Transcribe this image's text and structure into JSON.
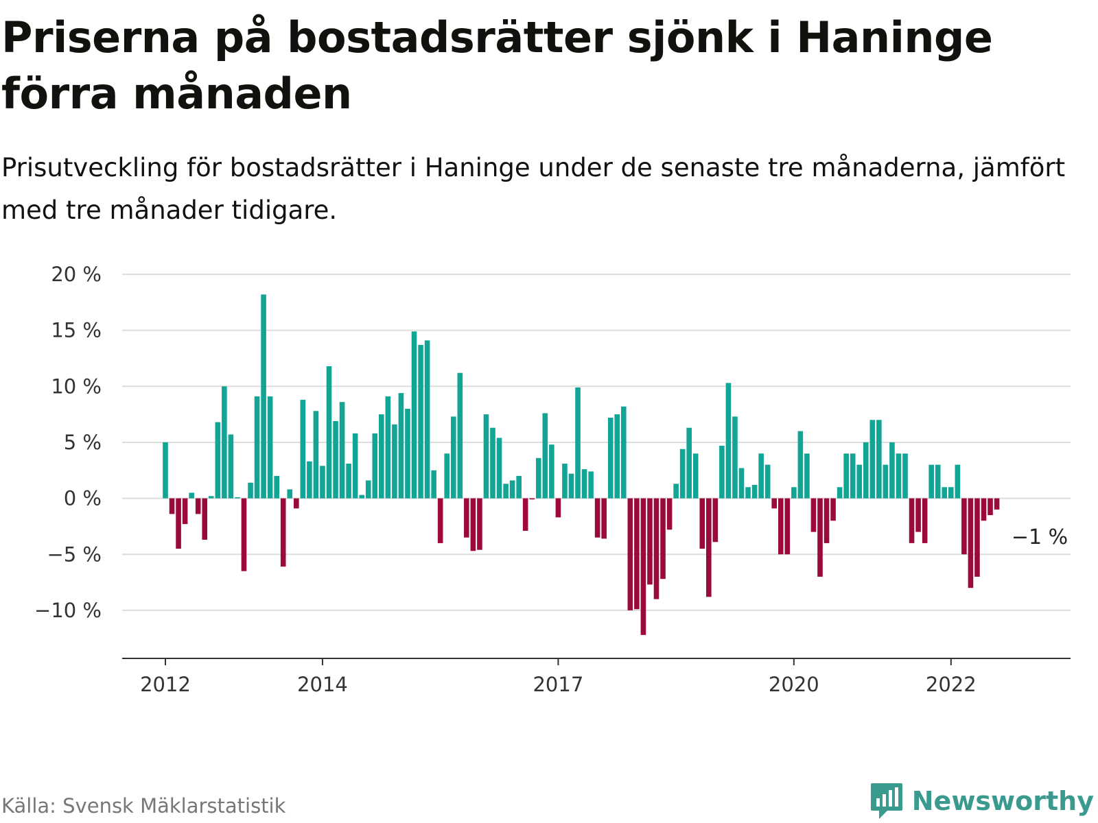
{
  "header": {
    "title": "Priserna på bostadsrätter sjönk i Haninge förra månaden",
    "subtitle": "Prisutveckling för bostadsrätter i Haninge under de senaste tre månaderna, jämfört med tre månader tidigare."
  },
  "footer": {
    "source": "Källa: Svensk Mäklarstatistik",
    "brand": "Newsworthy"
  },
  "colors": {
    "positive": "#12a596",
    "negative": "#9b0a3c",
    "gridline": "#dddddd",
    "axis": "#333333",
    "brand": "#3a9a8e"
  },
  "chart_data": {
    "type": "bar",
    "title": "Priserna på bostadsrätter sjönk i Haninge förra månaden",
    "subtitle": "Prisutveckling för bostadsrätter i Haninge under de senaste tre månaderna, jämfört med tre månader tidigare.",
    "xlabel": "",
    "ylabel": "",
    "ylim": [
      -14,
      20
    ],
    "y_ticks": [
      20,
      15,
      10,
      5,
      0,
      -5,
      -10
    ],
    "y_tick_labels": [
      "20 %",
      "15 %",
      "10 %",
      "5 %",
      "0 %",
      "−5 %",
      "−10 %"
    ],
    "x_ticks": [
      "2012",
      "2014",
      "2017",
      "2020",
      "2022"
    ],
    "grid": true,
    "legend": "none",
    "x_start": "2012-01",
    "x_end": "2023-02",
    "frequency": "monthly",
    "unit": "%",
    "values": [
      5,
      -1.4,
      -4.5,
      -2.3,
      0.5,
      -1.4,
      -3.7,
      0.2,
      6.8,
      10,
      5.7,
      0.1,
      -6.5,
      1.4,
      9.1,
      18.2,
      9.1,
      2,
      -6.1,
      0.8,
      -0.9,
      8.8,
      3.3,
      7.8,
      2.9,
      11.8,
      6.9,
      8.6,
      3.1,
      5.8,
      0.3,
      1.6,
      5.8,
      7.5,
      9.1,
      6.6,
      9.4,
      8,
      14.9,
      13.7,
      14.1,
      2.5,
      -4,
      4,
      7.3,
      11.2,
      -3.5,
      -4.7,
      -4.6,
      7.5,
      6.3,
      5.4,
      1.3,
      1.6,
      2,
      -2.9,
      -0.1,
      3.6,
      7.6,
      4.8,
      -1.7,
      3.1,
      2.2,
      9.9,
      2.6,
      2.4,
      -3.5,
      -3.6,
      7.2,
      7.5,
      8.2,
      -10,
      -9.9,
      -12.2,
      -7.7,
      -9,
      -7.2,
      -2.8,
      1.3,
      4.4,
      6.3,
      4,
      -4.5,
      -8.8,
      -3.9,
      4.7,
      10.3,
      7.3,
      2.7,
      1,
      1.2,
      4,
      3,
      -0.9,
      -5,
      -5,
      1,
      6,
      4,
      -3,
      -7,
      -4,
      -2,
      1,
      4,
      4,
      3,
      5,
      7,
      7,
      3,
      5,
      4,
      4,
      -4,
      -3,
      -4,
      3,
      3,
      1,
      1,
      3,
      -5,
      -8,
      -7,
      -2,
      -1.5,
      -1
    ],
    "annotations": [
      {
        "label": "−1 %",
        "value": -1,
        "x": "2023-02"
      }
    ]
  }
}
